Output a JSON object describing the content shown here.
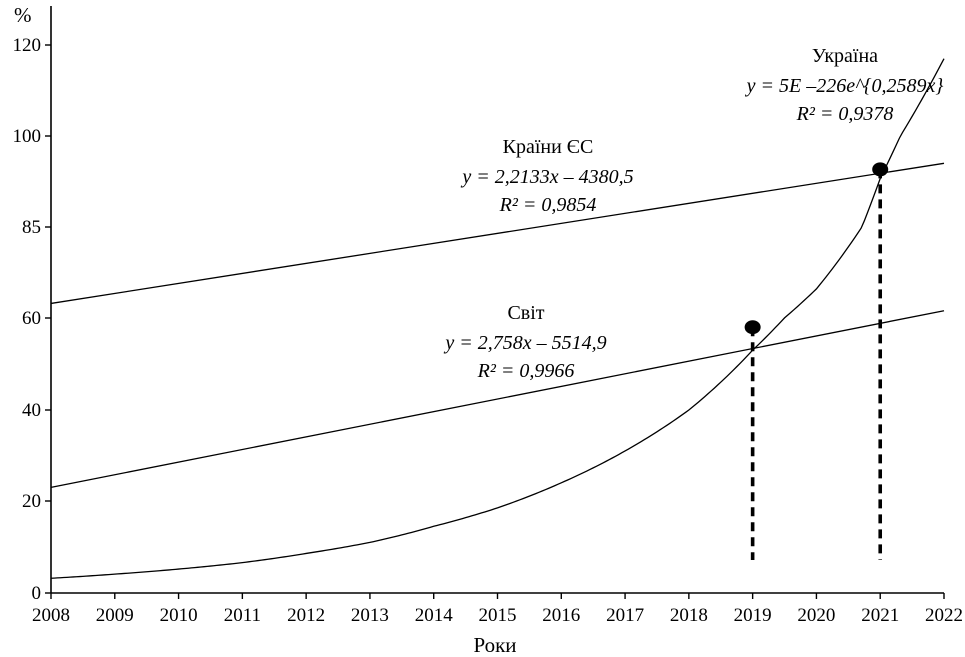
{
  "chart_data": {
    "type": "line",
    "ylabel": "%",
    "xlabel": "Роки",
    "xlim": [
      2008,
      2022
    ],
    "ylim_ticks": [
      0,
      20,
      40,
      60,
      85,
      100,
      120
    ],
    "x_ticks": [
      "2008",
      "2009",
      "2010",
      "2011",
      "2012",
      "2013",
      "2014",
      "2015",
      "2016",
      "2017",
      "2018",
      "2019",
      "2020",
      "2021",
      "2022"
    ],
    "grid": false,
    "series": [
      {
        "name": "Україна",
        "kind": "exponential",
        "equation": "y = 5E –226e^{0,2589x}",
        "r2": "R² = 0,9378",
        "x": [
          2008,
          2009,
          2010,
          2011,
          2012,
          2013,
          2014,
          2015,
          2016,
          2017,
          2018,
          2019,
          2020,
          2021,
          2022
        ],
        "values": [
          3.2,
          4.1,
          5.2,
          6.6,
          8.6,
          11.0,
          14.5,
          18.5,
          24.0,
          31.0,
          40.0,
          53.0,
          68.0,
          93.0,
          117.0
        ]
      },
      {
        "name": "Країни ЄС",
        "kind": "linear",
        "equation": "y = 2,2133x – 4380,5",
        "r2": "R² = 0,9854",
        "x": [
          2008,
          2022
        ],
        "values": [
          64.0,
          95.5
        ]
      },
      {
        "name": "Світ",
        "kind": "linear",
        "equation": "y = 2,758x – 5514,9",
        "r2": "R² = 0,9966",
        "x": [
          2008,
          2022
        ],
        "values": [
          23.0,
          62.0
        ]
      }
    ],
    "markers": [
      {
        "x": 2019,
        "y": 58
      },
      {
        "x": 2021,
        "y": 94.5
      }
    ]
  }
}
